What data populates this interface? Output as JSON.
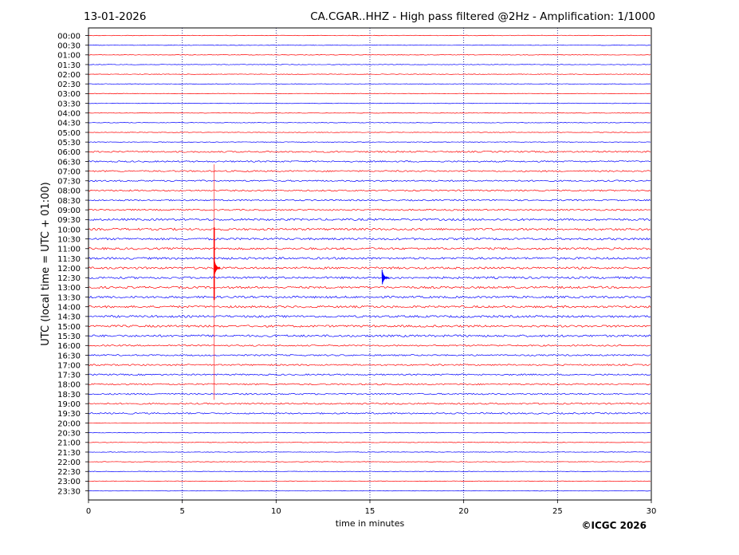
{
  "header": {
    "date": "13-01-2026",
    "title": "CA.CGAR..HHZ - High pass filtered @2Hz - Amplification: 1/1000"
  },
  "chart_data": {
    "type": "line",
    "xlabel": "time in minutes",
    "ylabel": "UTC (local time = UTC + 01:00)",
    "xlim": [
      0,
      30
    ],
    "x_ticks": [
      "0",
      "5",
      "10",
      "15",
      "20",
      "25",
      "30"
    ],
    "x_tick_values": [
      0,
      5,
      10,
      15,
      20,
      25,
      30
    ],
    "grid": "vertical dotted at each x tick",
    "trace_colors": [
      "#ff0000",
      "#0000ff"
    ],
    "rows": [
      "00:00",
      "00:30",
      "01:00",
      "01:30",
      "02:00",
      "02:30",
      "03:00",
      "03:30",
      "04:00",
      "04:30",
      "05:00",
      "05:30",
      "06:00",
      "06:30",
      "07:00",
      "07:30",
      "08:00",
      "08:30",
      "09:00",
      "09:30",
      "10:00",
      "10:30",
      "11:00",
      "11:30",
      "12:00",
      "12:30",
      "13:00",
      "13:30",
      "14:00",
      "14:30",
      "15:00",
      "15:30",
      "16:00",
      "16:30",
      "17:00",
      "17:30",
      "18:00",
      "18:30",
      "19:00",
      "19:30",
      "20:00",
      "20:30",
      "21:00",
      "21:30",
      "22:00",
      "22:30",
      "23:00",
      "23:30"
    ],
    "events": [
      {
        "row": "12:00",
        "minute": 6.7,
        "color": "#ff0000",
        "amplitude": "large"
      },
      {
        "row": "12:30",
        "minute": 15.65,
        "color": "#0000ff",
        "amplitude": "medium"
      }
    ],
    "copyright": "©ICGC 2026"
  }
}
